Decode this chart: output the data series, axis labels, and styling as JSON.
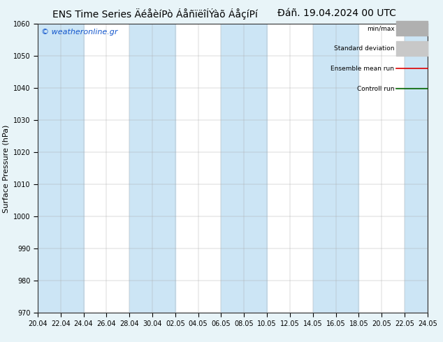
{
  "title_left": "ENS Time Series ÄéåèíPò ÁåñïëîÍÝàõ ÁåçíPí",
  "title_right": "Ðáñ. 19.04.2024 00 UTC",
  "ylabel": "Surface Pressure (hPa)",
  "watermark": "© weatheronline.gr",
  "ylim": [
    970,
    1060
  ],
  "yticks": [
    970,
    980,
    990,
    1000,
    1010,
    1020,
    1030,
    1040,
    1050,
    1060
  ],
  "x_labels": [
    "20.04",
    "22.04",
    "24.04",
    "26.04",
    "28.04",
    "30.04",
    "02.05",
    "04.05",
    "06.05",
    "08.05",
    "10.05",
    "12.05",
    "14.05",
    "16.05",
    "18.05",
    "20.05",
    "22.05",
    "24.05"
  ],
  "bg_color": "#e8f4f8",
  "plot_bg_color": "#ffffff",
  "band_color": "#cce5f5",
  "band_indices": [
    0,
    1,
    4,
    5,
    8,
    9,
    12,
    13,
    16,
    17
  ],
  "legend_labels": [
    "min/max",
    "Standard deviation",
    "Ensemble mean run",
    "Controll run"
  ],
  "legend_line_colors": [
    "#b0b0b0",
    "#c8c8c8",
    "#dd0000",
    "#006600"
  ],
  "legend_fill_colors": [
    "#b0b0b0",
    "#c8c8c8",
    null,
    null
  ],
  "title_fontsize": 10,
  "tick_fontsize": 7,
  "ylabel_fontsize": 8,
  "watermark_fontsize": 8
}
